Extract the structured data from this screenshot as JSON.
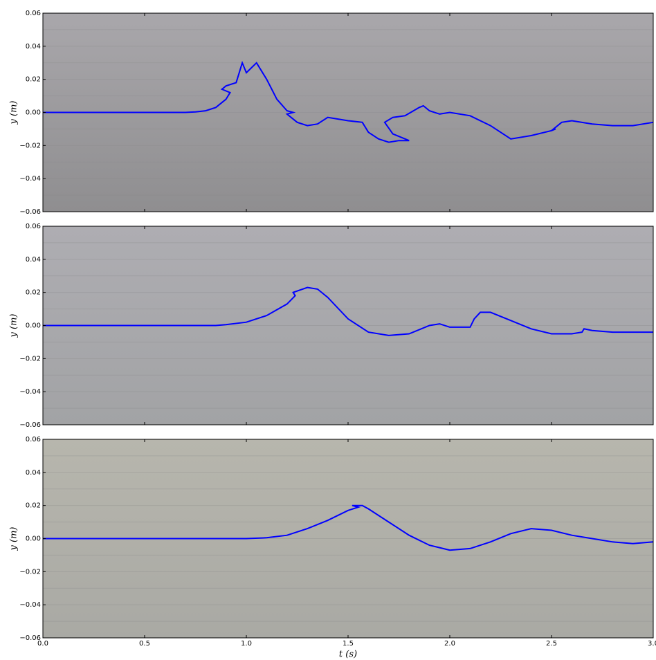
{
  "chart_data": [
    {
      "type": "line",
      "ylabel": "y (m)",
      "xlim": [
        0,
        3
      ],
      "ylim": [
        -0.06,
        0.06
      ],
      "xticks": [
        0,
        0.5,
        1,
        1.5,
        2,
        2.5,
        3
      ],
      "show_xtick_labels": false,
      "yticks": [
        {
          "value": -0.06,
          "label": "−0.06"
        },
        {
          "value": -0.04,
          "label": "−0.04"
        },
        {
          "value": -0.02,
          "label": "−0.02"
        },
        {
          "value": 0,
          "label": "0.00"
        },
        {
          "value": 0.02,
          "label": "0.02"
        },
        {
          "value": 0.04,
          "label": "0.04"
        },
        {
          "value": 0.06,
          "label": "0.06"
        }
      ],
      "background": [
        "#a9a7ab",
        "#8f8e90"
      ],
      "series": [
        {
          "color": "#0000ff",
          "x": [
            0,
            0.5,
            0.7,
            0.75,
            0.8,
            0.85,
            0.9,
            0.92,
            0.88,
            0.9,
            0.95,
            0.98,
            1.0,
            1.05,
            1.1,
            1.15,
            1.2,
            1.23,
            1.2,
            1.25,
            1.3,
            1.35,
            1.4,
            1.5,
            1.57,
            1.6,
            1.65,
            1.7,
            1.75,
            1.8,
            1.72,
            1.68,
            1.72,
            1.78,
            1.85,
            1.87,
            1.9,
            1.95,
            2.0,
            2.1,
            2.2,
            2.3,
            2.4,
            2.5,
            2.52,
            2.5,
            2.55,
            2.6,
            2.7,
            2.8,
            2.9,
            3.0
          ],
          "values": [
            0,
            0,
            0,
            0.0003,
            0.001,
            0.003,
            0.008,
            0.012,
            0.014,
            0.016,
            0.018,
            0.03,
            0.024,
            0.03,
            0.02,
            0.008,
            0.001,
            0,
            -0.001,
            -0.006,
            -0.008,
            -0.007,
            -0.003,
            -0.005,
            -0.006,
            -0.012,
            -0.016,
            -0.018,
            -0.017,
            -0.017,
            -0.013,
            -0.006,
            -0.003,
            -0.002,
            0.003,
            0.004,
            0.001,
            -0.001,
            0,
            -0.002,
            -0.008,
            -0.016,
            -0.014,
            -0.011,
            -0.01,
            -0.011,
            -0.006,
            -0.005,
            -0.007,
            -0.008,
            -0.008,
            -0.006
          ]
        }
      ]
    },
    {
      "type": "line",
      "ylabel": "y (m)",
      "xlim": [
        0,
        3
      ],
      "ylim": [
        -0.06,
        0.06
      ],
      "xticks": [
        0,
        0.5,
        1,
        1.5,
        2,
        2.5,
        3
      ],
      "show_xtick_labels": false,
      "yticks": [
        {
          "value": -0.06,
          "label": "−0.06"
        },
        {
          "value": -0.04,
          "label": "−0.04"
        },
        {
          "value": -0.02,
          "label": "−0.02"
        },
        {
          "value": 0,
          "label": "0.00"
        },
        {
          "value": 0.02,
          "label": "0.02"
        },
        {
          "value": 0.04,
          "label": "0.04"
        },
        {
          "value": 0.06,
          "label": "0.06"
        }
      ],
      "background": [
        "#aeadb2",
        "#a2a3a5"
      ],
      "series": [
        {
          "color": "#0000ff",
          "x": [
            0,
            0.5,
            0.85,
            0.9,
            1.0,
            1.1,
            1.2,
            1.24,
            1.23,
            1.3,
            1.35,
            1.4,
            1.5,
            1.6,
            1.7,
            1.8,
            1.9,
            1.95,
            2.0,
            2.1,
            2.12,
            2.15,
            2.2,
            2.3,
            2.4,
            2.5,
            2.6,
            2.65,
            2.66,
            2.7,
            2.8,
            3.0
          ],
          "values": [
            0,
            0,
            0,
            0.0005,
            0.002,
            0.006,
            0.013,
            0.018,
            0.02,
            0.023,
            0.022,
            0.017,
            0.004,
            -0.004,
            -0.006,
            -0.005,
            0,
            0.001,
            -0.001,
            -0.001,
            0.004,
            0.008,
            0.008,
            0.003,
            -0.002,
            -0.005,
            -0.005,
            -0.004,
            -0.002,
            -0.003,
            -0.004,
            -0.004
          ]
        }
      ]
    },
    {
      "type": "line",
      "ylabel": "y (m)",
      "xlabel": "t (s)",
      "xlim": [
        0,
        3
      ],
      "ylim": [
        -0.06,
        0.06
      ],
      "xticks": [
        {
          "value": 0,
          "label": "0.0"
        },
        {
          "value": 0.5,
          "label": "0.5"
        },
        {
          "value": 1,
          "label": "1.0"
        },
        {
          "value": 1.5,
          "label": "1.5"
        },
        {
          "value": 2,
          "label": "2.0"
        },
        {
          "value": 2.5,
          "label": "2.5"
        },
        {
          "value": 3,
          "label": "3.0"
        }
      ],
      "show_xtick_labels": true,
      "yticks": [
        {
          "value": -0.06,
          "label": "−0.06"
        },
        {
          "value": -0.04,
          "label": "−0.04"
        },
        {
          "value": -0.02,
          "label": "−0.02"
        },
        {
          "value": 0,
          "label": "0.00"
        },
        {
          "value": 0.02,
          "label": "0.02"
        },
        {
          "value": 0.04,
          "label": "0.04"
        },
        {
          "value": 0.06,
          "label": "0.06"
        }
      ],
      "background": [
        "#b7b6ad",
        "#a9a9a4"
      ],
      "series": [
        {
          "color": "#0000ff",
          "x": [
            0,
            0.5,
            1.0,
            1.1,
            1.2,
            1.3,
            1.4,
            1.5,
            1.55,
            1.52,
            1.57,
            1.6,
            1.7,
            1.8,
            1.9,
            2.0,
            2.1,
            2.2,
            2.3,
            2.4,
            2.5,
            2.6,
            2.7,
            2.8,
            2.9,
            3.0
          ],
          "values": [
            0,
            0,
            0,
            0.0005,
            0.002,
            0.006,
            0.011,
            0.017,
            0.019,
            0.02,
            0.02,
            0.018,
            0.01,
            0.002,
            -0.004,
            -0.007,
            -0.006,
            -0.002,
            0.003,
            0.006,
            0.005,
            0.002,
            0,
            -0.002,
            -0.003,
            -0.002
          ]
        }
      ]
    }
  ]
}
